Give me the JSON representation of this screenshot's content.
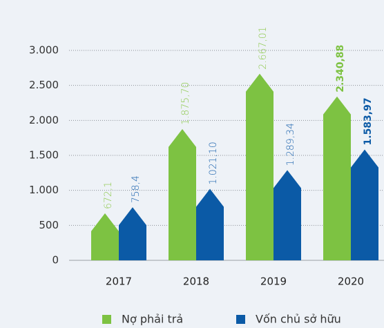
{
  "chart_data": {
    "type": "bar",
    "categories": [
      "2017",
      "2018",
      "2019",
      "2020"
    ],
    "series": [
      {
        "name": "Nợ phải trả",
        "color": "#7dc242",
        "values": [
          672.1,
          1875.7,
          2667.01,
          2340.88
        ],
        "value_labels": [
          "672,1",
          "1.875,70",
          "2.667,01",
          "2.340,88"
        ]
      },
      {
        "name": "Vốn chủ sở hữu",
        "color": "#0b5aa6",
        "values": [
          758.4,
          1021.1,
          1289.34,
          1583.97
        ],
        "value_labels": [
          "758,4",
          "1.021,10",
          "1.289,34",
          "1.583,97"
        ]
      }
    ],
    "ylim": [
      0,
      3000
    ],
    "yticks": [
      0,
      500,
      {
        "value": 1000,
        "label": "1.000"
      },
      {
        "value": 1500,
        "label": "1.500"
      },
      {
        "value": 2000,
        "label": "2.000"
      },
      {
        "value": 2500,
        "label": "2.500"
      },
      {
        "value": 3000,
        "label": "3.000"
      }
    ],
    "grid": true,
    "legend": "bottom"
  }
}
